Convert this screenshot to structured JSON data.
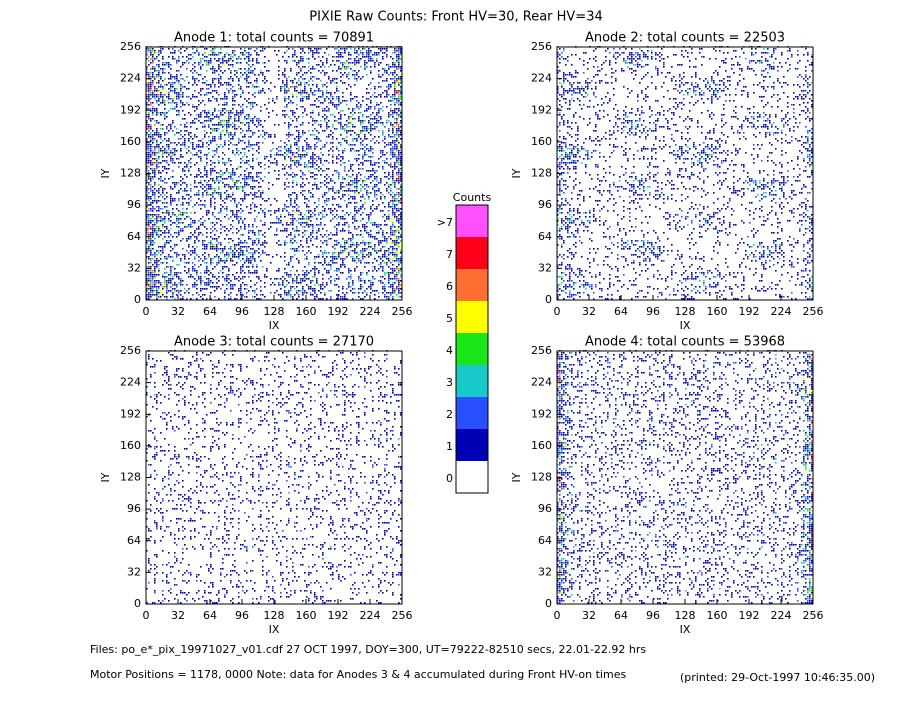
{
  "title": "PIXIE Raw Counts:  Front HV=30, Rear HV=34",
  "panels": [
    {
      "title": "Anode 1: total counts = 70891",
      "xlabel": "IX",
      "ylabel": "IY",
      "xlim": [
        0,
        256
      ],
      "ylim": [
        0,
        256
      ],
      "xticks": [
        0,
        32,
        64,
        96,
        128,
        160,
        192,
        224,
        256
      ],
      "yticks": [
        0,
        32,
        64,
        96,
        128,
        160,
        192,
        224,
        256
      ]
    },
    {
      "title": "Anode 2: total counts = 22503",
      "xlabel": "IX",
      "ylabel": "IY",
      "xlim": [
        0,
        256
      ],
      "ylim": [
        0,
        256
      ],
      "xticks": [
        0,
        32,
        64,
        96,
        128,
        160,
        192,
        224,
        256
      ],
      "yticks": [
        0,
        32,
        64,
        96,
        128,
        160,
        192,
        224,
        256
      ]
    },
    {
      "title": "Anode 3: total counts = 27170",
      "xlabel": "IX",
      "ylabel": "IY",
      "xlim": [
        0,
        256
      ],
      "ylim": [
        0,
        256
      ],
      "xticks": [
        0,
        32,
        64,
        96,
        128,
        160,
        192,
        224,
        256
      ],
      "yticks": [
        0,
        32,
        64,
        96,
        128,
        160,
        192,
        224,
        256
      ]
    },
    {
      "title": "Anode 4: total counts = 53968",
      "xlabel": "IX",
      "ylabel": "IY",
      "xlim": [
        0,
        256
      ],
      "ylim": [
        0,
        256
      ],
      "xticks": [
        0,
        32,
        64,
        96,
        128,
        160,
        192,
        224,
        256
      ],
      "yticks": [
        0,
        32,
        64,
        96,
        128,
        160,
        192,
        224,
        256
      ]
    }
  ],
  "colorbar": {
    "title": "Counts",
    "levels": [
      {
        "label": "0",
        "color": "#ffffff"
      },
      {
        "label": "1",
        "color": "#0000b4"
      },
      {
        "label": "2",
        "color": "#2850ff"
      },
      {
        "label": "3",
        "color": "#19c8c8"
      },
      {
        "label": "4",
        "color": "#19e619"
      },
      {
        "label": "5",
        "color": "#ffff00"
      },
      {
        "label": "6",
        "color": "#ff6e32"
      },
      {
        "label": "7",
        "color": "#ff0019"
      },
      {
        "label": ">7",
        "color": "#ff50ff"
      }
    ]
  },
  "footer": {
    "files": "Files: po_e*_pix_19971027_v01.cdf    27 OCT 1997, DOY=300, UT=79222-82510 secs, 22.01-22.92 hrs",
    "motor": "Motor Positions = 1178, 0000   Note: data for Anodes 3 & 4 accumulated during Front HV-on times",
    "printed": "(printed: 29-Oct-1997 10:46:35.00)"
  }
}
